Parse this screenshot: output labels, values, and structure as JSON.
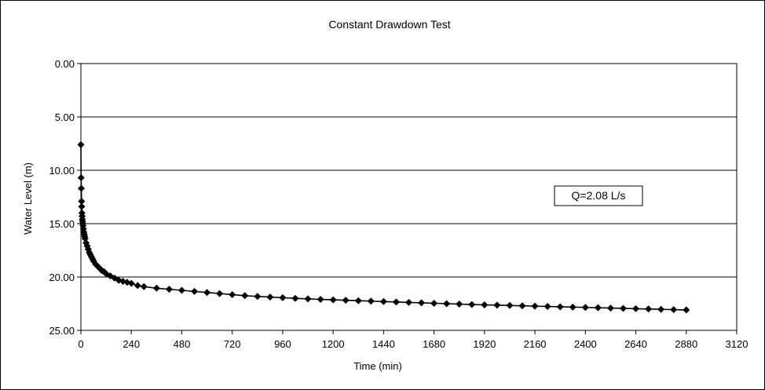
{
  "chart_data": {
    "type": "scatter",
    "title": "Constant Drawdown Test",
    "xlabel": "Time (min)",
    "ylabel": "Water Level (m)",
    "xlim": [
      0,
      3120
    ],
    "ylim": [
      0,
      25
    ],
    "y_inverted": true,
    "x_ticks": [
      0,
      240,
      480,
      720,
      960,
      1200,
      1440,
      1680,
      1920,
      2160,
      2400,
      2640,
      2880,
      3120
    ],
    "y_ticks": [
      0,
      5,
      10,
      15,
      20,
      25
    ],
    "y_tick_labels": [
      "0.00",
      "5.00",
      "10.00",
      "15.00",
      "20.00",
      "25.00"
    ],
    "grid": "horizontal",
    "legend": "none",
    "annotation": "Q=2.08 L/s",
    "colors": {
      "series": "#000000",
      "grid": "#000000",
      "background": "#ffffff"
    },
    "series": [
      {
        "marker": "diamond",
        "x": [
          0,
          1,
          2,
          3,
          4,
          5,
          6,
          7,
          8,
          9,
          10,
          12,
          14,
          16,
          18,
          20,
          25,
          30,
          35,
          40,
          45,
          50,
          55,
          60,
          70,
          80,
          90,
          100,
          110,
          120,
          140,
          160,
          180,
          200,
          220,
          240,
          270,
          300,
          360,
          420,
          480,
          540,
          600,
          660,
          720,
          780,
          840,
          900,
          960,
          1020,
          1080,
          1140,
          1200,
          1260,
          1320,
          1380,
          1440,
          1500,
          1560,
          1620,
          1680,
          1740,
          1800,
          1860,
          1920,
          1980,
          2040,
          2100,
          2160,
          2220,
          2280,
          2340,
          2400,
          2460,
          2520,
          2580,
          2640,
          2700,
          2760,
          2820,
          2880
        ],
        "y": [
          7.6,
          10.7,
          11.7,
          12.9,
          13.4,
          14.0,
          14.3,
          14.6,
          14.8,
          15.0,
          15.2,
          15.5,
          15.8,
          16.0,
          16.2,
          16.4,
          16.8,
          17.1,
          17.4,
          17.7,
          17.9,
          18.1,
          18.3,
          18.5,
          18.8,
          19.0,
          19.2,
          19.4,
          19.5,
          19.7,
          19.9,
          20.1,
          20.3,
          20.4,
          20.5,
          20.6,
          20.8,
          20.9,
          21.05,
          21.15,
          21.25,
          21.35,
          21.45,
          21.55,
          21.65,
          21.75,
          21.82,
          21.88,
          21.94,
          22.0,
          22.05,
          22.1,
          22.14,
          22.18,
          22.22,
          22.26,
          22.3,
          22.34,
          22.38,
          22.42,
          22.46,
          22.5,
          22.54,
          22.58,
          22.61,
          22.64,
          22.67,
          22.7,
          22.73,
          22.76,
          22.79,
          22.82,
          22.85,
          22.88,
          22.91,
          22.94,
          22.97,
          23.0,
          23.03,
          23.06,
          23.09
        ]
      }
    ]
  }
}
